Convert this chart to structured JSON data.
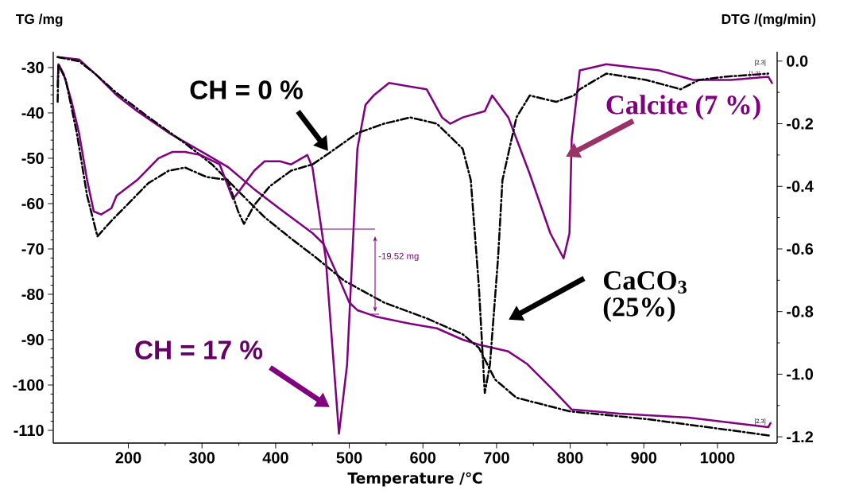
{
  "chart_data": {
    "type": "line",
    "xlabel": "Temperature /℃",
    "ylabel": "TG /mg",
    "y2label": "DTG /(mg/min)",
    "xlim": [
      98,
      1081
    ],
    "xticks": [
      200,
      300,
      400,
      500,
      600,
      700,
      800,
      900,
      1000
    ],
    "ylim": [
      -112.8,
      -26.5
    ],
    "yticks": [
      -30,
      -40,
      -50,
      -60,
      -70,
      -80,
      -90,
      -100,
      -110
    ],
    "y2lim": [
      -1.22,
      0.03
    ],
    "y2ticks": [
      {
        "value": 0,
        "label": "0.0"
      },
      -0.2,
      -0.4,
      -0.6,
      -0.8,
      {
        "value": -1,
        "label": "-1.0"
      },
      -1.2
    ],
    "series": [
      {
        "color": "#800080",
        "line_style": "solid",
        "x": [
          104,
          133,
          155,
          184,
          212,
          255,
          298,
          335,
          370,
          406,
          450,
          465,
          486,
          500,
          511,
          536,
          583,
          619,
          654,
          676,
          716,
          741,
          777,
          802,
          867,
          961,
          1069,
          1072
        ],
        "values": [
          -27.7,
          -28.2,
          -31.4,
          -36.1,
          -39.6,
          -44.4,
          -48.4,
          -51.9,
          -56.7,
          -61.2,
          -66.5,
          -68.9,
          -76.5,
          -81.8,
          -83.5,
          -84.9,
          -86.5,
          -87.5,
          -90.0,
          -91.1,
          -92.6,
          -95.3,
          -101.1,
          -105.4,
          -106.3,
          -107.2,
          -109.3,
          -108.4
        ]
      },
      {
        "color": "#000000",
        "line_style": "dashdot",
        "x": [
          104,
          133,
          155,
          184,
          227,
          277,
          314,
          349,
          385,
          421,
          454,
          493,
          547,
          605,
          654,
          676,
          698,
          727,
          799,
          903,
          1010,
          1072
        ],
        "values": [
          -27.7,
          -28.6,
          -31.4,
          -35.6,
          -40.9,
          -46.7,
          -51.4,
          -57.2,
          -63.0,
          -67.7,
          -71.8,
          -77.0,
          -81.8,
          -85.3,
          -88.8,
          -91.8,
          -98.8,
          -102.8,
          -105.8,
          -107.5,
          -109.8,
          -111.2
        ]
      },
      {
        "color": "#800080",
        "line_style": "solid",
        "axis": "y2",
        "x": [
          104,
          105,
          112,
          123,
          133,
          144,
          153,
          163,
          177,
          184,
          212,
          241,
          260,
          277,
          298,
          324,
          342,
          349,
          371,
          385,
          406,
          421,
          443,
          450,
          468,
          486,
          497,
          511,
          522,
          533,
          554,
          605,
          626,
          637,
          654,
          684,
          694,
          716,
          745,
          773,
          791,
          799,
          802,
          813,
          849,
          921,
          967,
          1018,
          1069,
          1074
        ],
        "values": [
          -0.08,
          -0.01,
          -0.04,
          -0.13,
          -0.23,
          -0.38,
          -0.48,
          -0.49,
          -0.47,
          -0.43,
          -0.38,
          -0.31,
          -0.29,
          -0.29,
          -0.3,
          -0.33,
          -0.44,
          -0.42,
          -0.35,
          -0.32,
          -0.32,
          -0.33,
          -0.3,
          -0.34,
          -0.63,
          -1.19,
          -0.97,
          -0.28,
          -0.14,
          -0.11,
          -0.07,
          -0.09,
          -0.18,
          -0.2,
          -0.18,
          -0.16,
          -0.11,
          -0.18,
          -0.36,
          -0.55,
          -0.63,
          -0.55,
          -0.25,
          -0.03,
          -0.01,
          -0.03,
          -0.06,
          -0.06,
          -0.05,
          -0.07
        ]
      },
      {
        "color": "#000000",
        "line_style": "dashdot",
        "axis": "y2",
        "x": [
          104,
          105,
          115,
          130,
          144,
          158,
          177,
          198,
          227,
          255,
          277,
          306,
          335,
          349,
          357,
          371,
          392,
          421,
          450,
          475,
          511,
          547,
          583,
          619,
          654,
          665,
          676,
          684,
          691,
          702,
          708,
          727,
          745,
          781,
          805,
          813,
          849,
          903,
          950,
          975,
          1010,
          1069
        ],
        "values": [
          -0.13,
          -0.01,
          -0.06,
          -0.23,
          -0.43,
          -0.56,
          -0.51,
          -0.46,
          -0.39,
          -0.35,
          -0.34,
          -0.37,
          -0.38,
          -0.48,
          -0.52,
          -0.46,
          -0.4,
          -0.35,
          -0.33,
          -0.29,
          -0.23,
          -0.2,
          -0.18,
          -0.2,
          -0.28,
          -0.38,
          -0.72,
          -1.06,
          -0.97,
          -0.63,
          -0.38,
          -0.18,
          -0.11,
          -0.13,
          -0.11,
          -0.09,
          -0.04,
          -0.06,
          -0.09,
          -0.06,
          -0.05,
          -0.04
        ]
      }
    ],
    "annotations": [
      "CH = 0 %",
      "CH = 17 %",
      "Calcite (7 %)",
      "CaCO$_{3}$",
      "(25%)",
      "-19.52 mg",
      "[2.3]",
      "[1.3]",
      "[2.3]"
    ]
  }
}
